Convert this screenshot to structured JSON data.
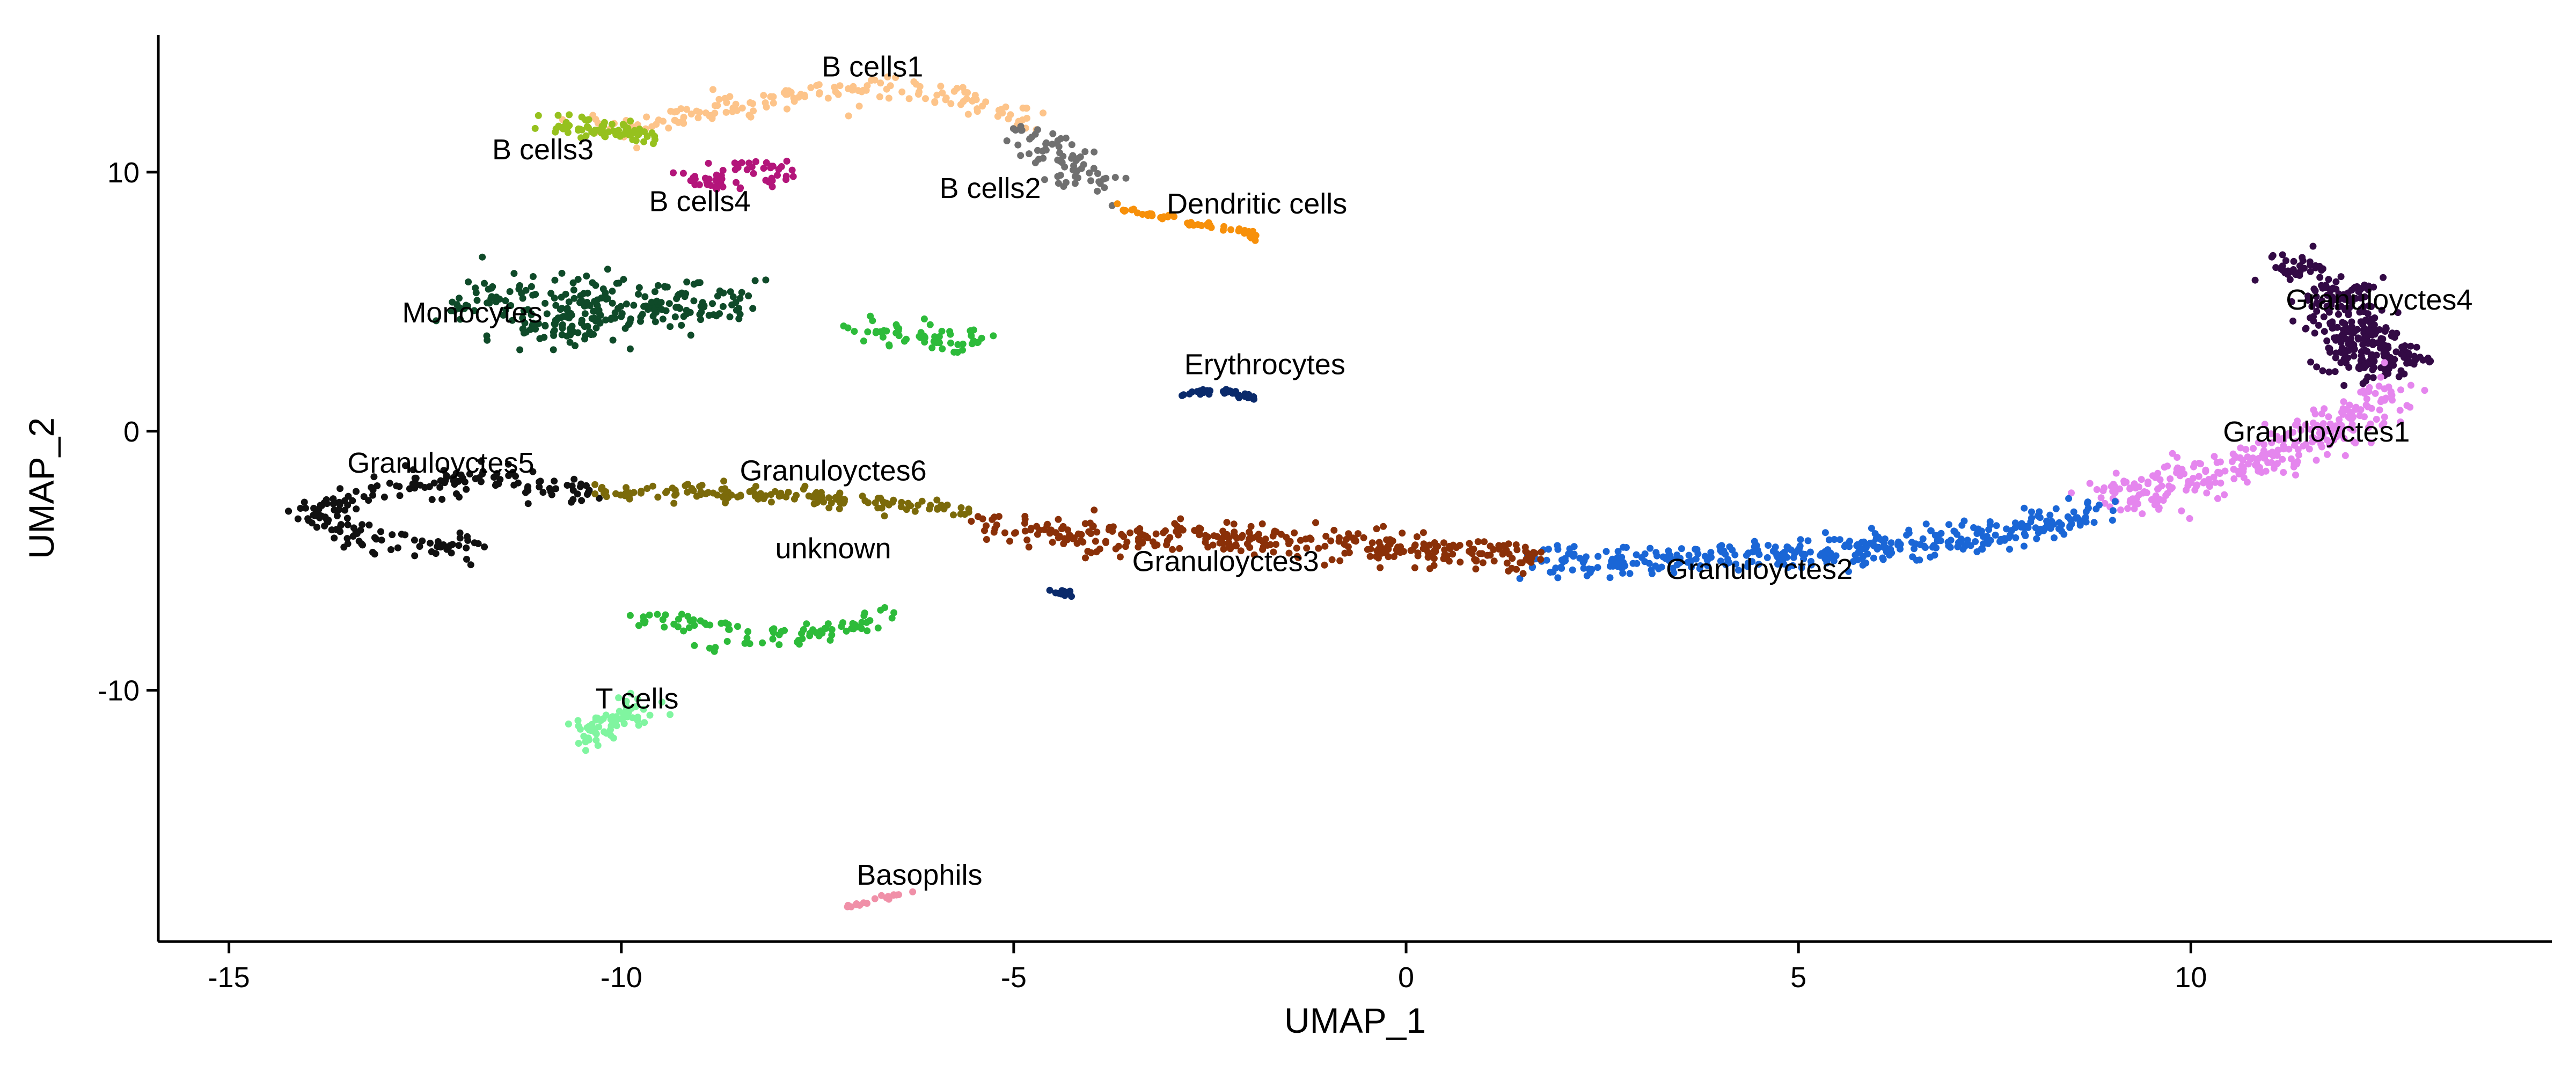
{
  "chart_data": {
    "type": "scatter",
    "title": "",
    "xlabel": "UMAP_1",
    "ylabel": "UMAP_2",
    "xlim": [
      -15.9,
      14.6
    ],
    "ylim": [
      -19.7,
      15.3
    ],
    "xticks": [
      -15,
      -10,
      -5,
      0,
      5,
      10
    ],
    "yticks": [
      -10,
      0,
      10
    ],
    "xtick_labels": [
      "-15",
      "-10",
      "-5",
      "0",
      "5",
      "10"
    ],
    "ytick_labels": [
      "-10",
      "0",
      "10"
    ],
    "grid": false,
    "legend": "none",
    "clusters": [
      {
        "name": "B cells1",
        "color": "#FDC48A",
        "label_pos": [
          -6.8,
          13.7
        ],
        "path": [
          [
            -10.5,
            11.8
          ],
          [
            -9.5,
            12.0
          ],
          [
            -8.5,
            12.5
          ],
          [
            -7.5,
            13.1
          ],
          [
            -6.5,
            13.3
          ],
          [
            -5.5,
            12.8
          ],
          [
            -4.8,
            12.0
          ]
        ],
        "spread": 0.25,
        "n": 160
      },
      {
        "name": "B cells2",
        "color": "#707070",
        "label_pos": [
          -5.3,
          9.0
        ],
        "path": [
          [
            -5.0,
            11.5
          ],
          [
            -4.5,
            10.9
          ],
          [
            -4.0,
            10.3
          ],
          [
            -4.3,
            9.6
          ],
          [
            -3.8,
            9.4
          ]
        ],
        "spread": 0.3,
        "n": 70
      },
      {
        "name": "B cells3",
        "color": "#96C11E",
        "label_pos": [
          -11.0,
          10.5
        ],
        "path": [
          [
            -11.0,
            11.8
          ],
          [
            -10.5,
            11.7
          ],
          [
            -10.0,
            11.6
          ],
          [
            -9.7,
            11.3
          ]
        ],
        "spread": 0.2,
        "n": 70
      },
      {
        "name": "B cells4",
        "color": "#B3157A",
        "label_pos": [
          -9.0,
          8.5
        ],
        "path": [
          [
            -9.3,
            10.0
          ],
          [
            -8.8,
            9.5
          ],
          [
            -8.3,
            9.5
          ],
          [
            -7.9,
            9.9
          ],
          [
            -8.3,
            10.3
          ],
          [
            -8.8,
            10.0
          ]
        ],
        "spread": 0.15,
        "n": 60
      },
      {
        "name": "Dendritic cells",
        "color": "#F7900A",
        "label_pos": [
          -1.9,
          8.4
        ],
        "path": [
          [
            -3.9,
            8.8
          ],
          [
            -3.0,
            8.2
          ],
          [
            -2.0,
            7.7
          ],
          [
            -1.9,
            7.4
          ]
        ],
        "spread": 0.08,
        "n": 50
      },
      {
        "name": "Monocytes",
        "color": "#0F4A29",
        "label_pos": [
          -11.9,
          4.2
        ],
        "path": [
          [
            -12.1,
            4.8
          ],
          [
            -11.5,
            5.5
          ],
          [
            -10.5,
            5.3
          ],
          [
            -9.5,
            5.0
          ],
          [
            -8.5,
            5.0
          ],
          [
            -10.8,
            4.2
          ],
          [
            -11.5,
            4.2
          ],
          [
            -10.0,
            3.6
          ]
        ],
        "spread": 0.45,
        "n": 260
      },
      {
        "name": "",
        "color": "#2DBB3A",
        "path": [
          [
            -7.0,
            4.0
          ],
          [
            -6.3,
            3.8
          ],
          [
            -5.8,
            3.5
          ],
          [
            -5.3,
            3.6
          ]
        ],
        "spread": 0.25,
        "n": 60
      },
      {
        "name": "Erythrocytes",
        "color": "#0A2A6B",
        "label_pos": [
          -1.8,
          2.2
        ],
        "path": [
          [
            -2.8,
            1.5
          ],
          [
            -2.3,
            1.6
          ],
          [
            -1.9,
            1.2
          ]
        ],
        "spread": 0.08,
        "n": 35
      },
      {
        "name": "Granuloyctes4",
        "color": "#330A45",
        "label_pos": [
          12.4,
          4.7
        ],
        "path": [
          [
            11.0,
            6.5
          ],
          [
            11.6,
            6.0
          ],
          [
            12.2,
            5.2
          ],
          [
            11.6,
            4.6
          ],
          [
            12.3,
            3.6
          ],
          [
            12.8,
            2.5
          ],
          [
            11.8,
            2.8
          ],
          [
            12.4,
            4.2
          ]
        ],
        "spread": 0.35,
        "n": 320
      },
      {
        "name": "Granuloyctes1",
        "color": "#E586EE",
        "label_pos": [
          11.6,
          -0.4
        ],
        "path": [
          [
            8.8,
            -2.8
          ],
          [
            9.8,
            -2.0
          ],
          [
            10.7,
            -1.3
          ],
          [
            11.5,
            -0.3
          ],
          [
            12.2,
            0.8
          ],
          [
            12.6,
            1.6
          ]
        ],
        "spread": 0.4,
        "n": 300
      },
      {
        "name": "Granuloyctes2",
        "color": "#1A66D6",
        "label_pos": [
          4.5,
          -5.7
        ],
        "path": [
          [
            1.6,
            -5.1
          ],
          [
            3.0,
            -5.0
          ],
          [
            4.5,
            -4.8
          ],
          [
            6.0,
            -4.5
          ],
          [
            7.5,
            -4.0
          ],
          [
            8.8,
            -3.1
          ]
        ],
        "spread": 0.3,
        "n": 380
      },
      {
        "name": "Granuloyctes3",
        "color": "#8A3008",
        "label_pos": [
          -2.3,
          -5.4
        ],
        "path": [
          [
            -5.5,
            -3.8
          ],
          [
            -4.0,
            -4.0
          ],
          [
            -2.5,
            -4.1
          ],
          [
            -1.0,
            -4.3
          ],
          [
            0.5,
            -4.7
          ],
          [
            1.7,
            -4.9
          ]
        ],
        "spread": 0.3,
        "n": 340
      },
      {
        "name": "Granuloyctes5",
        "color": "#111111",
        "label_pos": [
          -12.3,
          -1.6
        ],
        "path": [
          [
            -10.4,
            -2.3
          ],
          [
            -11.5,
            -1.9
          ],
          [
            -12.5,
            -2.0
          ],
          [
            -13.3,
            -2.4
          ],
          [
            -14.0,
            -3.2
          ],
          [
            -13.4,
            -4.0
          ],
          [
            -12.5,
            -4.6
          ],
          [
            -11.8,
            -4.3
          ]
        ],
        "spread": 0.28,
        "n": 200
      },
      {
        "name": "Granuloyctes6",
        "color": "#7B6A0A",
        "label_pos": [
          -7.3,
          -1.9
        ],
        "path": [
          [
            -10.4,
            -2.3
          ],
          [
            -9.0,
            -2.4
          ],
          [
            -7.5,
            -2.6
          ],
          [
            -6.5,
            -2.8
          ],
          [
            -5.6,
            -3.1
          ]
        ],
        "spread": 0.18,
        "n": 140
      },
      {
        "name": "unknown",
        "color": "#0A2A6B",
        "label_pos": [
          -7.3,
          -4.9
        ],
        "path": [
          [
            -4.5,
            -6.1
          ],
          [
            -4.3,
            -6.3
          ]
        ],
        "spread": 0.06,
        "n": 12
      },
      {
        "name": "",
        "color": "#2DBB3A",
        "path": [
          [
            -10.0,
            -7.3
          ],
          [
            -8.5,
            -7.6
          ],
          [
            -7.5,
            -7.8
          ],
          [
            -6.5,
            -7.2
          ],
          [
            -9.0,
            -8.4
          ]
        ],
        "spread": 0.2,
        "n": 90
      },
      {
        "name": "T cells",
        "color": "#80F5A0",
        "label_pos": [
          -9.8,
          -10.7
        ],
        "path": [
          [
            -10.5,
            -11.8
          ],
          [
            -10.0,
            -11.0
          ],
          [
            -9.6,
            -10.6
          ]
        ],
        "spread": 0.25,
        "n": 70
      },
      {
        "name": "Basophils",
        "color": "#F090A8",
        "label_pos": [
          -6.2,
          -17.5
        ],
        "path": [
          [
            -7.2,
            -18.4
          ],
          [
            -6.2,
            -17.7
          ]
        ],
        "spread": 0.05,
        "n": 18
      }
    ]
  }
}
